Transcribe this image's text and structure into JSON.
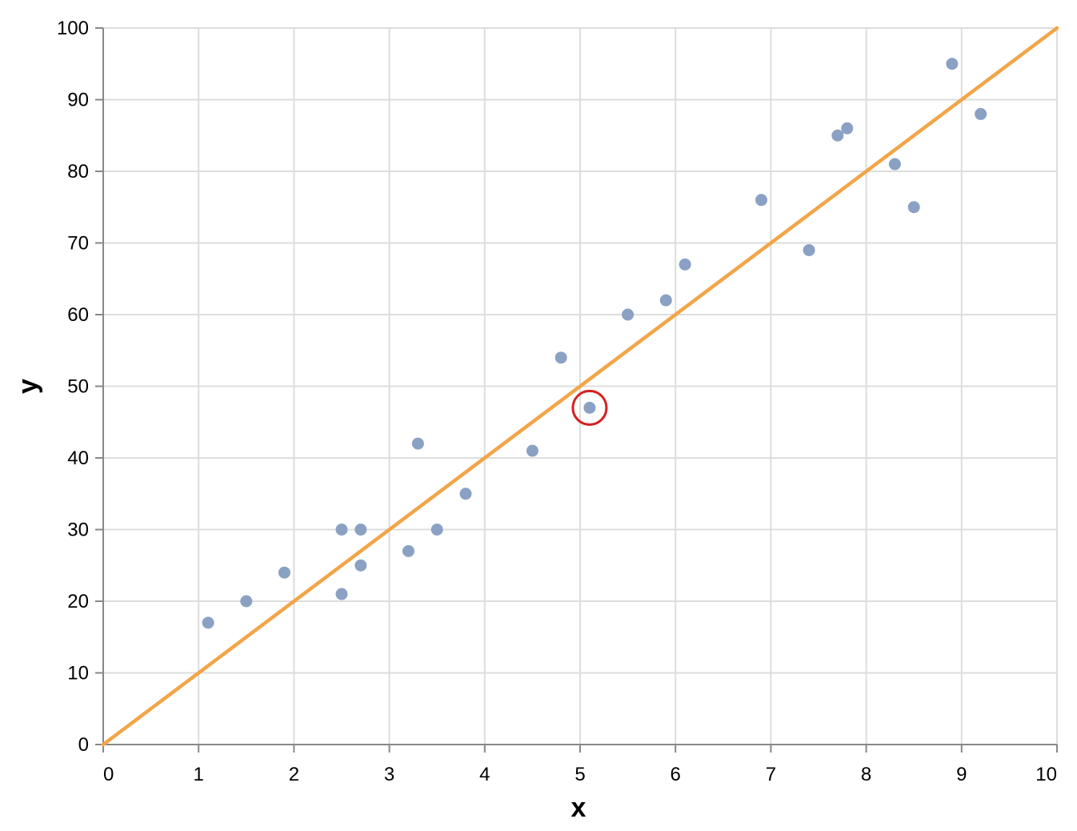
{
  "chart_data": {
    "type": "scatter",
    "title": "",
    "xlabel": "x",
    "ylabel": "y",
    "xlim": [
      0,
      10
    ],
    "ylim": [
      0,
      100
    ],
    "x_ticks": [
      0,
      1,
      2,
      3,
      4,
      5,
      6,
      7,
      8,
      9,
      10
    ],
    "y_ticks": [
      0,
      10,
      20,
      30,
      40,
      50,
      60,
      70,
      80,
      90,
      100
    ],
    "grid": true,
    "colors": {
      "points": "#8aa1c4",
      "line": "#f2a548",
      "highlight": "#d62020",
      "grid": "#dddddd",
      "axis": "#888888"
    },
    "points": [
      {
        "x": 1.1,
        "y": 17
      },
      {
        "x": 1.5,
        "y": 20
      },
      {
        "x": 1.9,
        "y": 24
      },
      {
        "x": 2.5,
        "y": 30
      },
      {
        "x": 2.5,
        "y": 21
      },
      {
        "x": 2.7,
        "y": 30
      },
      {
        "x": 2.7,
        "y": 25
      },
      {
        "x": 3.2,
        "y": 27
      },
      {
        "x": 3.3,
        "y": 42
      },
      {
        "x": 3.5,
        "y": 30
      },
      {
        "x": 3.8,
        "y": 35
      },
      {
        "x": 4.5,
        "y": 41
      },
      {
        "x": 4.8,
        "y": 54
      },
      {
        "x": 5.1,
        "y": 47
      },
      {
        "x": 5.5,
        "y": 60
      },
      {
        "x": 5.9,
        "y": 62
      },
      {
        "x": 6.1,
        "y": 67
      },
      {
        "x": 6.9,
        "y": 76
      },
      {
        "x": 7.4,
        "y": 69
      },
      {
        "x": 7.7,
        "y": 85
      },
      {
        "x": 7.8,
        "y": 86
      },
      {
        "x": 8.3,
        "y": 81
      },
      {
        "x": 8.5,
        "y": 75
      },
      {
        "x": 8.9,
        "y": 95
      },
      {
        "x": 9.2,
        "y": 88
      }
    ],
    "line": [
      {
        "x": 0,
        "y": 0
      },
      {
        "x": 10,
        "y": 100
      }
    ],
    "highlight_point_index": 13
  }
}
